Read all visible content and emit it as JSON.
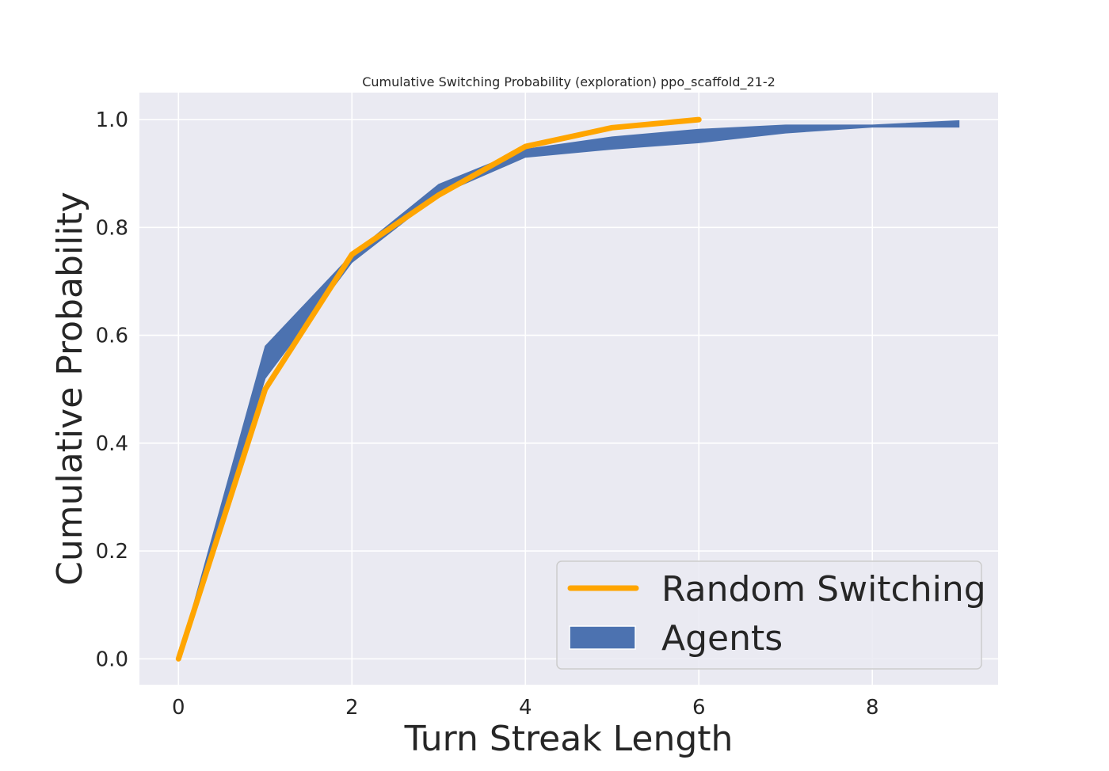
{
  "chart_data": {
    "type": "line",
    "title": "Cumulative Switching Probability (exploration) ppo_scaffold_21-2",
    "xlabel": "Turn Streak Length",
    "ylabel": "Cumulative Probability",
    "xlim": [
      -0.45,
      9.45
    ],
    "ylim": [
      -0.048,
      1.05
    ],
    "xticks": [
      0,
      2,
      4,
      6,
      8
    ],
    "xtick_labels": [
      "0",
      "2",
      "4",
      "6",
      "8"
    ],
    "yticks": [
      0.0,
      0.2,
      0.4,
      0.6,
      0.8,
      1.0
    ],
    "ytick_labels": [
      "0.0",
      "0.2",
      "0.4",
      "0.6",
      "0.8",
      "1.0"
    ],
    "grid": true,
    "legend_position": "lower-right",
    "series": [
      {
        "name": "Random Switching",
        "kind": "line",
        "color": "#FFA500",
        "x": [
          0,
          1,
          2,
          3,
          4,
          5,
          6
        ],
        "y": [
          0.0,
          0.5,
          0.75,
          0.86,
          0.95,
          0.985,
          1.0
        ]
      },
      {
        "name": "Agents",
        "kind": "band",
        "color": "#4C72B0",
        "x": [
          0,
          1,
          2,
          3,
          4,
          5,
          6,
          7,
          8,
          9
        ],
        "lower": [
          0.0,
          0.52,
          0.735,
          0.86,
          0.93,
          0.945,
          0.957,
          0.975,
          0.986,
          0.986
        ],
        "upper": [
          0.0,
          0.58,
          0.75,
          0.88,
          0.945,
          0.968,
          0.982,
          0.99,
          0.99,
          0.998
        ]
      }
    ]
  },
  "colors": {
    "plot_background": "#EAEAF2",
    "grid": "#FFFFFF",
    "text": "#262626"
  }
}
